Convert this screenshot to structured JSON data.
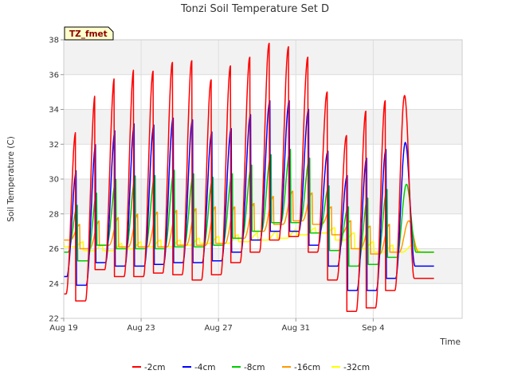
{
  "chart_data": {
    "type": "line",
    "title": "Tonzi Soil Temperature Set D",
    "xlabel": "Time",
    "ylabel": "Soil Temperature (C)",
    "tag": "TZ_fmet",
    "ylim": [
      22,
      38
    ],
    "yticks": [
      22,
      24,
      26,
      28,
      30,
      32,
      34,
      36,
      38
    ],
    "xlim_day": [
      0,
      20.6
    ],
    "xtick_values": [
      0,
      4,
      8,
      12,
      16
    ],
    "xtick_labels": [
      "Aug 19",
      "Aug 23",
      "Aug 27",
      "Aug 31",
      "Sep 4"
    ],
    "grid": true,
    "legend_position": "bottom",
    "series": [
      {
        "name": "-2cm",
        "color": "#ff0000",
        "max": [
          32.7,
          34.8,
          35.8,
          36.3,
          36.2,
          36.7,
          36.8,
          35.7,
          36.5,
          37.0,
          37.8,
          37.6,
          37.0,
          35.0,
          32.5,
          33.9,
          34.5,
          34.8
        ],
        "min": [
          23.4,
          23.0,
          24.8,
          24.4,
          24.4,
          24.6,
          24.5,
          24.2,
          24.5,
          25.2,
          25.8,
          26.5,
          26.7,
          25.8,
          24.2,
          22.4,
          22.6,
          23.6,
          24.3
        ]
      },
      {
        "name": "-4cm",
        "color": "#0000ff",
        "max": [
          30.5,
          32.0,
          32.8,
          33.2,
          33.1,
          33.5,
          33.4,
          32.7,
          32.9,
          33.7,
          34.5,
          34.5,
          34.0,
          31.6,
          30.2,
          31.2,
          31.7,
          32.1
        ],
        "min": [
          24.4,
          23.9,
          25.2,
          25.0,
          25.0,
          25.1,
          25.2,
          25.2,
          25.3,
          25.8,
          26.5,
          27.0,
          27.0,
          26.2,
          25.0,
          23.6,
          23.6,
          24.3,
          25.0
        ]
      },
      {
        "name": "-8cm",
        "color": "#00cc00",
        "max": [
          28.5,
          29.2,
          30.0,
          30.2,
          30.2,
          30.5,
          30.3,
          30.1,
          30.3,
          30.8,
          31.4,
          31.7,
          31.2,
          29.6,
          28.4,
          28.9,
          29.4,
          29.7
        ],
        "min": [
          25.8,
          25.3,
          26.2,
          26.0,
          26.0,
          26.0,
          26.1,
          26.1,
          26.2,
          26.6,
          27.0,
          27.5,
          27.5,
          26.9,
          25.9,
          25.0,
          25.1,
          25.5,
          25.8
        ]
      },
      {
        "name": "-16cm",
        "color": "#ff9900",
        "max": [
          27.4,
          27.6,
          27.8,
          28.0,
          28.1,
          28.2,
          28.3,
          28.4,
          28.4,
          28.6,
          29.0,
          29.3,
          29.2,
          28.4,
          27.6,
          27.3,
          27.4,
          27.6
        ],
        "min": [
          26.5,
          26.0,
          26.2,
          26.1,
          26.1,
          26.1,
          26.2,
          26.2,
          26.3,
          26.6,
          27.0,
          27.4,
          27.6,
          27.4,
          26.8,
          26.0,
          25.7,
          25.8,
          25.8
        ]
      },
      {
        "name": "-32cm",
        "color": "#ffff00",
        "max": [
          26.4,
          26.2,
          26.3,
          26.4,
          26.5,
          26.5,
          26.6,
          26.7,
          26.8,
          26.9,
          27.0,
          27.1,
          27.2,
          27.2,
          26.9,
          26.4,
          26.2,
          26.2
        ],
        "min": [
          26.1,
          25.9,
          25.9,
          26.0,
          26.1,
          26.1,
          26.2,
          26.3,
          26.3,
          26.4,
          26.5,
          26.6,
          26.8,
          26.9,
          26.5,
          26.0,
          25.8,
          25.8,
          25.8
        ]
      }
    ]
  }
}
